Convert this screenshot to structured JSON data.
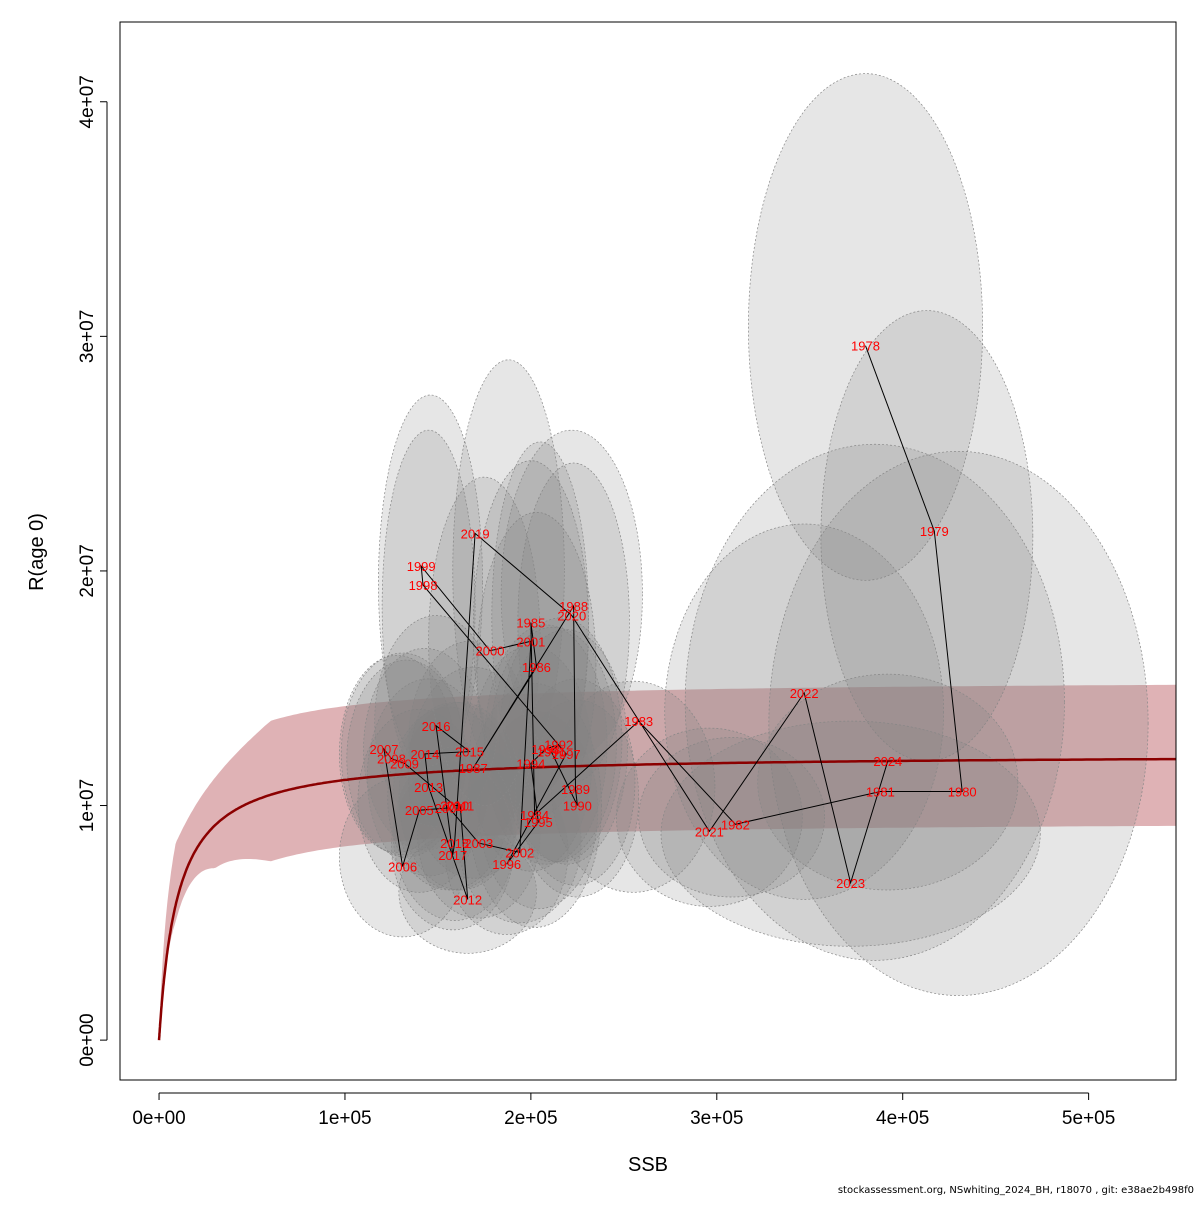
{
  "footer": "stockassessment.org, NSwhiting_2024_BH, r18070 , git: e38ae2b498f0",
  "chart_data": {
    "type": "scatter",
    "xlabel": "SSB",
    "ylabel": "R(age 0)",
    "xlim": [
      -21000,
      547000
    ],
    "ylim": [
      -1700000,
      43400000
    ],
    "x_ticks": [
      {
        "value": 0,
        "label": "0e+00"
      },
      {
        "value": 100000,
        "label": "1e+05"
      },
      {
        "value": 200000,
        "label": "2e+05"
      },
      {
        "value": 300000,
        "label": "3e+05"
      },
      {
        "value": 400000,
        "label": "4e+05"
      },
      {
        "value": 500000,
        "label": "5e+05"
      }
    ],
    "y_ticks": [
      {
        "value": 0,
        "label": "0e+00"
      },
      {
        "value": 10000000,
        "label": "1e+07"
      },
      {
        "value": 20000000,
        "label": "2e+07"
      },
      {
        "value": 30000000,
        "label": "3e+07"
      },
      {
        "value": 40000000,
        "label": "4e+07"
      }
    ],
    "colors": {
      "fit_line": "#8B0000",
      "fit_band": "#C97F83",
      "ellipse_fill": "#808080",
      "ellipse_stroke": "#888888",
      "year_labels": "#FF0000",
      "path": "#000000"
    },
    "model": {
      "type": "beverton-holt",
      "a": 1e-05,
      "asymptote": 12200000
    },
    "points": [
      {
        "year": "1978",
        "ssb": 380000,
        "r": 29600000
      },
      {
        "year": "1979",
        "ssb": 417000,
        "r": 21700000
      },
      {
        "year": "1980",
        "ssb": 432000,
        "r": 10600000
      },
      {
        "year": "1981",
        "ssb": 388000,
        "r": 10600000
      },
      {
        "year": "1982",
        "ssb": 310000,
        "r": 9200000
      },
      {
        "year": "1983",
        "ssb": 258000,
        "r": 13600000
      },
      {
        "year": "1984",
        "ssb": 202000,
        "r": 9600000
      },
      {
        "year": "1985",
        "ssb": 200000,
        "r": 17800000
      },
      {
        "year": "1986",
        "ssb": 203000,
        "r": 15900000
      },
      {
        "year": "1987",
        "ssb": 169000,
        "r": 11600000
      },
      {
        "year": "1988",
        "ssb": 223000,
        "r": 18500000
      },
      {
        "year": "1989",
        "ssb": 224000,
        "r": 10700000
      },
      {
        "year": "1990",
        "ssb": 225000,
        "r": 10000000
      },
      {
        "year": "1991",
        "ssb": 211000,
        "r": 12300000
      },
      {
        "year": "1992",
        "ssb": 215000,
        "r": 12600000
      },
      {
        "year": "1993",
        "ssb": 208000,
        "r": 12400000
      },
      {
        "year": "1994",
        "ssb": 200000,
        "r": 11800000
      },
      {
        "year": "1995",
        "ssb": 204000,
        "r": 9300000
      },
      {
        "year": "1996",
        "ssb": 187000,
        "r": 7500000
      },
      {
        "year": "1997",
        "ssb": 219000,
        "r": 12200000
      },
      {
        "year": "1998",
        "ssb": 142000,
        "r": 19400000
      },
      {
        "year": "1999",
        "ssb": 141000,
        "r": 20200000
      },
      {
        "year": "2000",
        "ssb": 178000,
        "r": 16600000
      },
      {
        "year": "2001",
        "ssb": 200000,
        "r": 17000000
      },
      {
        "year": "2002",
        "ssb": 194000,
        "r": 8000000
      },
      {
        "year": "2003",
        "ssb": 172000,
        "r": 8400000
      },
      {
        "year": "2004",
        "ssb": 156000,
        "r": 9900000
      },
      {
        "year": "2005",
        "ssb": 140000,
        "r": 9800000
      },
      {
        "year": "2006",
        "ssb": 131000,
        "r": 7400000
      },
      {
        "year": "2007",
        "ssb": 121000,
        "r": 12400000
      },
      {
        "year": "2008",
        "ssb": 125000,
        "r": 12000000
      },
      {
        "year": "2009",
        "ssb": 132000,
        "r": 11800000
      },
      {
        "year": "2010",
        "ssb": 159000,
        "r": 10000000
      },
      {
        "year": "2011",
        "ssb": 162000,
        "r": 10000000
      },
      {
        "year": "2012",
        "ssb": 166000,
        "r": 6000000
      },
      {
        "year": "2013",
        "ssb": 145000,
        "r": 10800000
      },
      {
        "year": "2014",
        "ssb": 143000,
        "r": 12200000
      },
      {
        "year": "2015",
        "ssb": 167000,
        "r": 12300000
      },
      {
        "year": "2016",
        "ssb": 149000,
        "r": 13400000
      },
      {
        "year": "2017",
        "ssb": 158000,
        "r": 7900000
      },
      {
        "year": "2018",
        "ssb": 159000,
        "r": 8400000
      },
      {
        "year": "2019",
        "ssb": 170000,
        "r": 21600000
      },
      {
        "year": "2020",
        "ssb": 222000,
        "r": 18100000
      },
      {
        "year": "2021",
        "ssb": 296000,
        "r": 8900000
      },
      {
        "year": "2022",
        "ssb": 347000,
        "r": 14800000
      },
      {
        "year": "2023",
        "ssb": 372000,
        "r": 6700000
      },
      {
        "year": "2024",
        "ssb": 392000,
        "r": 11900000
      }
    ],
    "ellipses": [
      {
        "year": "1978",
        "cx": 380000,
        "cy": 30400000,
        "rx": 63000,
        "ry": 10800000
      },
      {
        "year": "1979",
        "cx": 413000,
        "cy": 21500000,
        "rx": 57000,
        "ry": 9600000
      },
      {
        "year": "1980",
        "cx": 430000,
        "cy": 13500000,
        "rx": 102000,
        "ry": 11600000
      },
      {
        "year": "1981",
        "cx": 385000,
        "cy": 14400000,
        "rx": 102000,
        "ry": 11000000
      },
      {
        "year": "1982",
        "cx": 308000,
        "cy": 9500000,
        "rx": 50000,
        "ry": 3400000
      },
      {
        "year": "1983",
        "cx": 255000,
        "cy": 10800000,
        "rx": 44000,
        "ry": 4500000
      },
      {
        "year": "1984",
        "cx": 202000,
        "cy": 10000000,
        "rx": 36000,
        "ry": 5200000
      },
      {
        "year": "1985",
        "cx": 200000,
        "cy": 17500000,
        "rx": 31000,
        "ry": 7200000
      },
      {
        "year": "1986",
        "cx": 203000,
        "cy": 16000000,
        "rx": 32000,
        "ry": 6500000
      },
      {
        "year": "1987",
        "cx": 169000,
        "cy": 11400000,
        "rx": 35000,
        "ry": 4500000
      },
      {
        "year": "1988",
        "cx": 223000,
        "cy": 17800000,
        "rx": 30000,
        "ry": 6800000
      },
      {
        "year": "1989",
        "cx": 224000,
        "cy": 11000000,
        "rx": 32000,
        "ry": 4400000
      },
      {
        "year": "1990",
        "cx": 225000,
        "cy": 10300000,
        "rx": 33000,
        "ry": 4200000
      },
      {
        "year": "1991",
        "cx": 212000,
        "cy": 12600000,
        "rx": 34000,
        "ry": 5000000
      },
      {
        "year": "1992",
        "cx": 216000,
        "cy": 12800000,
        "rx": 33000,
        "ry": 5200000
      },
      {
        "year": "1993",
        "cx": 208000,
        "cy": 12600000,
        "rx": 33000,
        "ry": 5100000
      },
      {
        "year": "1994",
        "cx": 200000,
        "cy": 12000000,
        "rx": 33000,
        "ry": 4800000
      },
      {
        "year": "1995",
        "cx": 204000,
        "cy": 9800000,
        "rx": 32000,
        "ry": 4200000
      },
      {
        "year": "1996",
        "cx": 187000,
        "cy": 8000000,
        "rx": 33000,
        "ry": 3500000
      },
      {
        "year": "1997",
        "cx": 219000,
        "cy": 12500000,
        "rx": 33000,
        "ry": 5000000
      },
      {
        "year": "1998",
        "cx": 146000,
        "cy": 19500000,
        "rx": 28000,
        "ry": 8000000
      },
      {
        "year": "1999",
        "cx": 145000,
        "cy": 18500000,
        "rx": 25000,
        "ry": 7500000
      },
      {
        "year": "2000",
        "cx": 188000,
        "cy": 20000000,
        "rx": 30000,
        "ry": 9000000
      },
      {
        "year": "2001",
        "cx": 205000,
        "cy": 18000000,
        "rx": 26000,
        "ry": 7500000
      },
      {
        "year": "2002",
        "cx": 194000,
        "cy": 8500000,
        "rx": 33000,
        "ry": 3500000
      },
      {
        "year": "2003",
        "cx": 172000,
        "cy": 8800000,
        "rx": 33000,
        "ry": 3600000
      },
      {
        "year": "2004",
        "cx": 156000,
        "cy": 10300000,
        "rx": 33000,
        "ry": 3900000
      },
      {
        "year": "2005",
        "cx": 140000,
        "cy": 10200000,
        "rx": 33000,
        "ry": 3900000
      },
      {
        "year": "2006",
        "cx": 131000,
        "cy": 7800000,
        "rx": 34000,
        "ry": 3400000
      },
      {
        "year": "2007",
        "cx": 131000,
        "cy": 12200000,
        "rx": 33000,
        "ry": 4300000
      },
      {
        "year": "2008",
        "cx": 128000,
        "cy": 12200000,
        "rx": 31000,
        "ry": 4200000
      },
      {
        "year": "2009",
        "cx": 133000,
        "cy": 12000000,
        "rx": 32000,
        "ry": 4200000
      },
      {
        "year": "2010",
        "cx": 159000,
        "cy": 10400000,
        "rx": 33000,
        "ry": 4000000
      },
      {
        "year": "2011",
        "cx": 162000,
        "cy": 10400000,
        "rx": 33000,
        "ry": 4000000
      },
      {
        "year": "2012",
        "cx": 166000,
        "cy": 6300000,
        "rx": 37000,
        "ry": 2600000
      },
      {
        "year": "2013",
        "cx": 145000,
        "cy": 11200000,
        "rx": 33000,
        "ry": 4200000
      },
      {
        "year": "2014",
        "cx": 143000,
        "cy": 12400000,
        "rx": 33000,
        "ry": 4300000
      },
      {
        "year": "2015",
        "cx": 167000,
        "cy": 12600000,
        "rx": 33000,
        "ry": 4400000
      },
      {
        "year": "2016",
        "cx": 149000,
        "cy": 13600000,
        "rx": 33000,
        "ry": 4500000
      },
      {
        "year": "2017",
        "cx": 158000,
        "cy": 8300000,
        "rx": 33000,
        "ry": 3600000
      },
      {
        "year": "2018",
        "cx": 159000,
        "cy": 8800000,
        "rx": 33000,
        "ry": 3700000
      },
      {
        "year": "2019",
        "cx": 175000,
        "cy": 17000000,
        "rx": 30000,
        "ry": 7000000
      },
      {
        "year": "2020",
        "cx": 222000,
        "cy": 19000000,
        "rx": 38000,
        "ry": 7000000
      },
      {
        "year": "2021",
        "cx": 296000,
        "cy": 9500000,
        "rx": 50000,
        "ry": 3800000
      },
      {
        "year": "2022",
        "cx": 347000,
        "cy": 14000000,
        "rx": 75000,
        "ry": 8000000
      },
      {
        "year": "2023",
        "cx": 372000,
        "cy": 8800000,
        "rx": 102000,
        "ry": 4800000
      },
      {
        "year": "2024",
        "cx": 392000,
        "cy": 11000000,
        "rx": 70000,
        "ry": 4600000
      }
    ]
  }
}
